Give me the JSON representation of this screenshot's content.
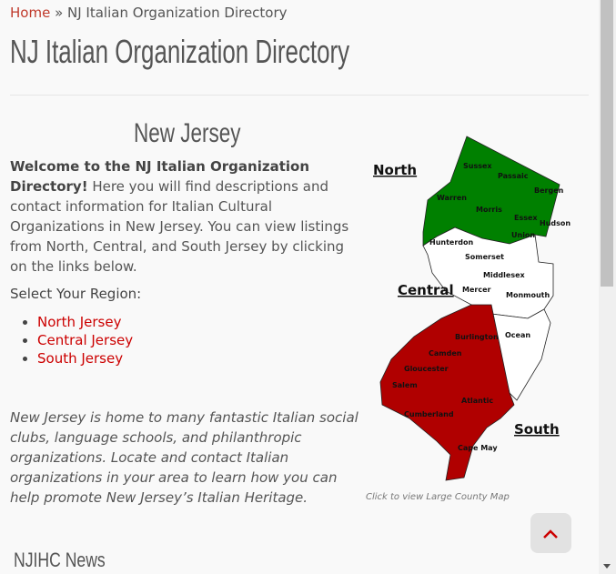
{
  "breadcrumb": {
    "home": "Home",
    "separator": " » ",
    "current": "NJ Italian Organization Directory"
  },
  "page_title": "NJ Italian Organization Directory",
  "region_title": "New Jersey",
  "intro": {
    "bold": "Welcome to the NJ Italian Organization Directory!",
    "text": " Here you will find descriptions and contact information for Italian Cultural Organizations in New Jersey. You can view listings from North, Central, and South Jersey by clicking on the links below."
  },
  "select_label": "Select Your Region:",
  "regions": [
    {
      "label": "North Jersey"
    },
    {
      "label": "Central Jersey"
    },
    {
      "label": "South Jersey"
    }
  ],
  "description": "New Jersey is home to many fantastic Italian social clubs, language schools, and philanthropic organizations. Locate and contact Italian organizations in your area to learn how you can help promote New Jersey’s Italian Heritage.",
  "map": {
    "caption": "Click to view Large County Map",
    "region_labels": {
      "north": "North",
      "central": "Central",
      "south": "South"
    },
    "colors": {
      "north": "#008000",
      "central": "#ffffff",
      "south": "#b00000"
    },
    "counties": {
      "sussex": "Sussex",
      "passaic": "Passaic",
      "bergen": "Bergen",
      "warren": "Warren",
      "morris": "Morris",
      "essex": "Essex",
      "hudson": "Hudson",
      "union": "Union",
      "hunterdon": "Hunterdon",
      "somerset": "Somerset",
      "middlesex": "Middlesex",
      "mercer": "Mercer",
      "monmouth": "Monmouth",
      "ocean": "Ocean",
      "burlington": "Burlington",
      "camden": "Camden",
      "gloucester": "Gloucester",
      "salem": "Salem",
      "atlantic": "Atlantic",
      "cumberland": "Cumberland",
      "cape_may": "Cape May"
    }
  },
  "news_title": "NJIHC News",
  "accent": "#cc0000"
}
